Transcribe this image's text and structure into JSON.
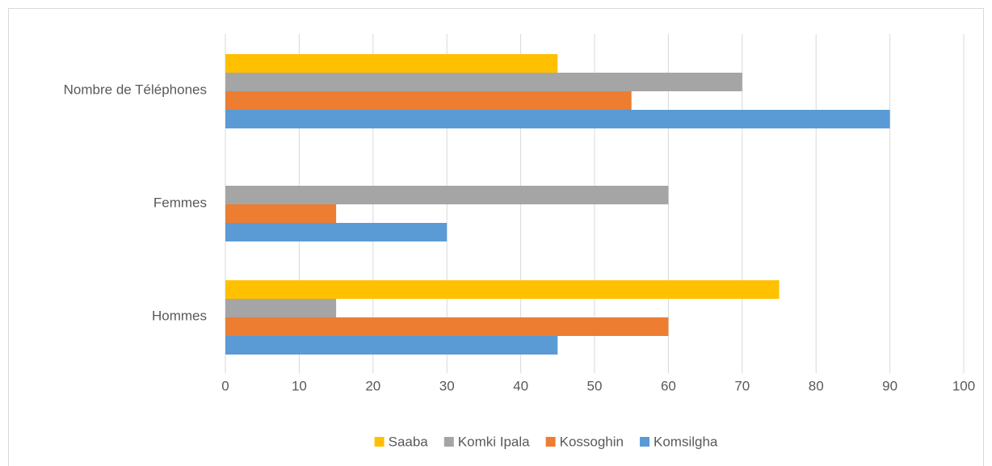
{
  "chart_data": {
    "type": "bar",
    "orientation": "horizontal",
    "categories": [
      "Hommes",
      "Femmes",
      "Nombre de Téléphones"
    ],
    "series": [
      {
        "name": "Saaba",
        "color": "#ffc000",
        "values": [
          75,
          0,
          45
        ]
      },
      {
        "name": "Komki Ipala",
        "color": "#a5a5a5",
        "values": [
          15,
          60,
          70
        ]
      },
      {
        "name": "Kossoghin",
        "color": "#ed7d31",
        "values": [
          60,
          15,
          55
        ]
      },
      {
        "name": "Komsilgha",
        "color": "#5b9bd5",
        "values": [
          45,
          30,
          90
        ]
      }
    ],
    "xlim": [
      0,
      100
    ],
    "xticks": [
      0,
      10,
      20,
      30,
      40,
      50,
      60,
      70,
      80,
      90,
      100
    ],
    "grid": true,
    "legend": "bottom"
  }
}
